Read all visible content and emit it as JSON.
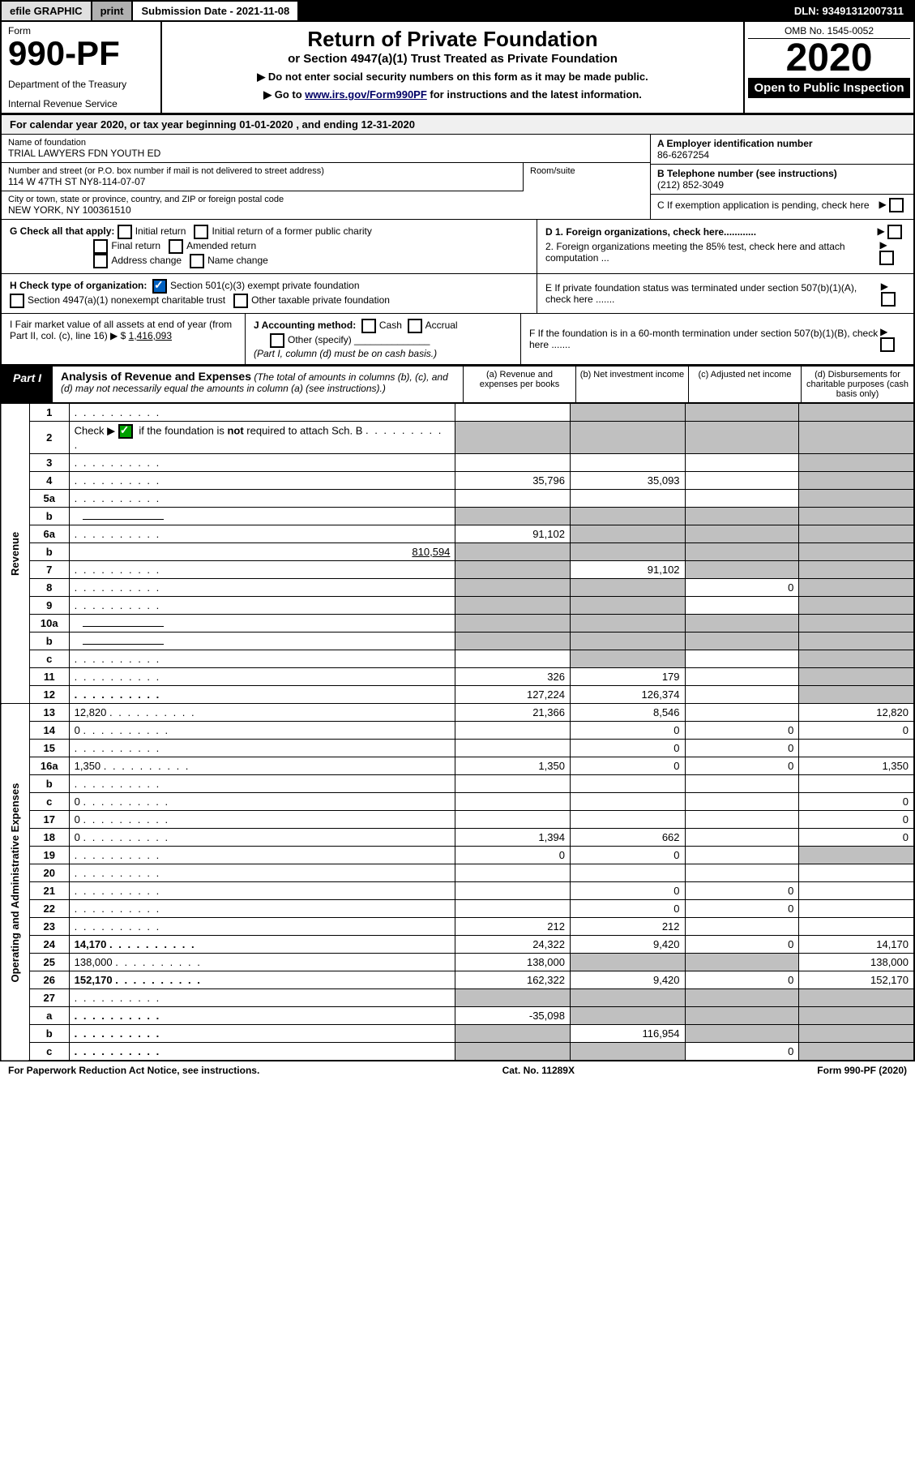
{
  "topbar": {
    "efile": "efile GRAPHIC",
    "print": "print",
    "submission": "Submission Date - 2021-11-08",
    "dln": "DLN: 93491312007311"
  },
  "header": {
    "form_label": "Form",
    "form_number": "990-PF",
    "dept": "Department of the Treasury",
    "irs": "Internal Revenue Service",
    "title": "Return of Private Foundation",
    "subtitle": "or Section 4947(a)(1) Trust Treated as Private Foundation",
    "note1": "▶ Do not enter social security numbers on this form as it may be made public.",
    "note2_pre": "▶ Go to ",
    "note2_link": "www.irs.gov/Form990PF",
    "note2_post": " for instructions and the latest information.",
    "omb": "OMB No. 1545-0052",
    "year": "2020",
    "open": "Open to Public Inspection"
  },
  "calyear": "For calendar year 2020, or tax year beginning 01-01-2020            , and ending 12-31-2020",
  "name_label": "Name of foundation",
  "name": "TRIAL LAWYERS FDN YOUTH ED",
  "addr_label": "Number and street (or P.O. box number if mail is not delivered to street address)",
  "addr": "114 W 47TH ST NY8-114-07-07",
  "room_label": "Room/suite",
  "city_label": "City or town, state or province, country, and ZIP or foreign postal code",
  "city": "NEW YORK, NY  100361510",
  "ein_label": "A Employer identification number",
  "ein": "86-6267254",
  "tel_label": "B Telephone number (see instructions)",
  "tel": "(212) 852-3049",
  "c_label": "C If exemption application is pending, check here",
  "g_label": "G Check all that apply:",
  "g_opts": [
    "Initial return",
    "Initial return of a former public charity",
    "Final return",
    "Amended return",
    "Address change",
    "Name change"
  ],
  "d1": "D 1. Foreign organizations, check here............",
  "d2": "2. Foreign organizations meeting the 85% test, check here and attach computation ...",
  "e": "E  If private foundation status was terminated under section 507(b)(1)(A), check here .......",
  "h_label": "H Check type of organization:",
  "h_501c3": "Section 501(c)(3) exempt private foundation",
  "h_4947": "Section 4947(a)(1) nonexempt charitable trust",
  "h_other": "Other taxable private foundation",
  "i_label": "I Fair market value of all assets at end of year (from Part II, col. (c), line 16) ▶ $",
  "i_value": "1,416,093",
  "j_label": "J Accounting method:",
  "j_cash": "Cash",
  "j_accrual": "Accrual",
  "j_other": "Other (specify)",
  "j_note": "(Part I, column (d) must be on cash basis.)",
  "f_label": "F  If the foundation is in a 60-month termination under section 507(b)(1)(B), check here .......",
  "part1": {
    "label": "Part I",
    "title": "Analysis of Revenue and Expenses",
    "note": "(The total of amounts in columns (b), (c), and (d) may not necessarily equal the amounts in column (a) (see instructions).)",
    "col_a": "(a)  Revenue and expenses per books",
    "col_b": "(b)  Net investment income",
    "col_c": "(c)  Adjusted net income",
    "col_d": "(d)  Disbursements for charitable purposes (cash basis only)"
  },
  "side_rev": "Revenue",
  "side_exp": "Operating and Administrative Expenses",
  "rows": [
    {
      "n": "1",
      "d": "",
      "a": "",
      "b": "",
      "c": "",
      "shade": [
        "b",
        "c",
        "d"
      ]
    },
    {
      "n": "2",
      "d": "",
      "check": true,
      "a": "",
      "b": "",
      "c": "",
      "shade": [
        "a",
        "b",
        "c",
        "d"
      ]
    },
    {
      "n": "3",
      "d": "",
      "a": "",
      "b": "",
      "c": "",
      "shade": [
        "d"
      ]
    },
    {
      "n": "4",
      "d": "",
      "a": "35,796",
      "b": "35,093",
      "c": "",
      "shade": [
        "d"
      ]
    },
    {
      "n": "5a",
      "d": "",
      "a": "",
      "b": "",
      "c": "",
      "shade": [
        "d"
      ]
    },
    {
      "n": "b",
      "d": "",
      "a": "",
      "b": "",
      "c": "",
      "shade": [
        "a",
        "b",
        "c",
        "d"
      ],
      "inline": true
    },
    {
      "n": "6a",
      "d": "",
      "a": "91,102",
      "b": "",
      "c": "",
      "shade": [
        "b",
        "c",
        "d"
      ]
    },
    {
      "n": "b",
      "d": "",
      "inline_val": "810,594",
      "a": "",
      "b": "",
      "c": "",
      "shade": [
        "a",
        "b",
        "c",
        "d"
      ]
    },
    {
      "n": "7",
      "d": "",
      "a": "",
      "b": "91,102",
      "c": "",
      "shade": [
        "a",
        "c",
        "d"
      ]
    },
    {
      "n": "8",
      "d": "",
      "a": "",
      "b": "",
      "c": "0",
      "shade": [
        "a",
        "b",
        "d"
      ]
    },
    {
      "n": "9",
      "d": "",
      "a": "",
      "b": "",
      "c": "",
      "shade": [
        "a",
        "b",
        "d"
      ]
    },
    {
      "n": "10a",
      "d": "",
      "inline": true,
      "a": "",
      "b": "",
      "c": "",
      "shade": [
        "a",
        "b",
        "c",
        "d"
      ]
    },
    {
      "n": "b",
      "d": "",
      "inline": true,
      "a": "",
      "b": "",
      "c": "",
      "shade": [
        "a",
        "b",
        "c",
        "d"
      ]
    },
    {
      "n": "c",
      "d": "",
      "a": "",
      "b": "",
      "c": "",
      "shade": [
        "b",
        "d"
      ]
    },
    {
      "n": "11",
      "d": "",
      "a": "326",
      "b": "179",
      "c": "",
      "shade": [
        "d"
      ]
    },
    {
      "n": "12",
      "d": "",
      "bold": true,
      "a": "127,224",
      "b": "126,374",
      "c": "",
      "shade": [
        "d"
      ]
    },
    {
      "n": "13",
      "d": "12,820",
      "a": "21,366",
      "b": "8,546",
      "c": ""
    },
    {
      "n": "14",
      "d": "0",
      "a": "",
      "b": "0",
      "c": "0"
    },
    {
      "n": "15",
      "d": "",
      "a": "",
      "b": "0",
      "c": "0"
    },
    {
      "n": "16a",
      "d": "1,350",
      "a": "1,350",
      "b": "0",
      "c": "0"
    },
    {
      "n": "b",
      "d": "",
      "a": "",
      "b": "",
      "c": ""
    },
    {
      "n": "c",
      "d": "0",
      "a": "",
      "b": "",
      "c": ""
    },
    {
      "n": "17",
      "d": "0",
      "a": "",
      "b": "",
      "c": ""
    },
    {
      "n": "18",
      "d": "0",
      "a": "1,394",
      "b": "662",
      "c": ""
    },
    {
      "n": "19",
      "d": "",
      "a": "0",
      "b": "0",
      "c": "",
      "shade": [
        "d"
      ]
    },
    {
      "n": "20",
      "d": "",
      "a": "",
      "b": "",
      "c": ""
    },
    {
      "n": "21",
      "d": "",
      "a": "",
      "b": "0",
      "c": "0"
    },
    {
      "n": "22",
      "d": "",
      "a": "",
      "b": "0",
      "c": "0"
    },
    {
      "n": "23",
      "d": "",
      "a": "212",
      "b": "212",
      "c": ""
    },
    {
      "n": "24",
      "d": "14,170",
      "bold": true,
      "a": "24,322",
      "b": "9,420",
      "c": "0"
    },
    {
      "n": "25",
      "d": "138,000",
      "a": "138,000",
      "b": "",
      "c": "",
      "shade": [
        "b",
        "c"
      ]
    },
    {
      "n": "26",
      "d": "152,170",
      "bold": true,
      "a": "162,322",
      "b": "9,420",
      "c": "0"
    },
    {
      "n": "27",
      "d": "",
      "a": "",
      "b": "",
      "c": "",
      "shade": [
        "a",
        "b",
        "c",
        "d"
      ]
    },
    {
      "n": "a",
      "d": "",
      "bold": true,
      "a": "-35,098",
      "b": "",
      "c": "",
      "shade": [
        "b",
        "c",
        "d"
      ]
    },
    {
      "n": "b",
      "d": "",
      "bold": true,
      "a": "",
      "b": "116,954",
      "c": "",
      "shade": [
        "a",
        "c",
        "d"
      ]
    },
    {
      "n": "c",
      "d": "",
      "bold": true,
      "a": "",
      "b": "",
      "c": "0",
      "shade": [
        "a",
        "b",
        "d"
      ]
    }
  ],
  "footer": {
    "left": "For Paperwork Reduction Act Notice, see instructions.",
    "mid": "Cat. No. 11289X",
    "right": "Form 990-PF (2020)"
  }
}
